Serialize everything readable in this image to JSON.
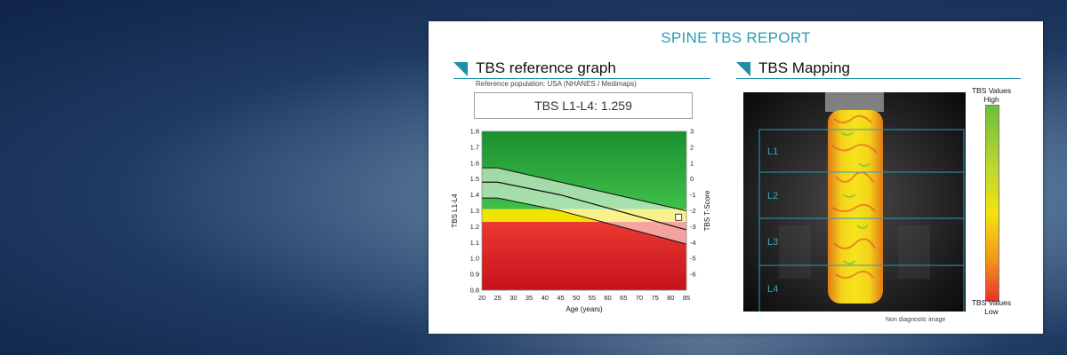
{
  "report": {
    "title": "SPINE TBS  REPORT",
    "left_section": "TBS reference graph",
    "right_section": "TBS Mapping",
    "reference_population": "Reference population: USA (NHANES / Medimaps)",
    "tbs_value_label": "TBS  L1-L4: 1.259",
    "non_diagnostic": "Non diagnostic image"
  },
  "mapping": {
    "levels": [
      "L1",
      "L2",
      "L3",
      "L4"
    ],
    "legend_high_top": "TBS Values",
    "legend_high_bottom": "High",
    "legend_low_top": "TBS Values",
    "legend_low_bottom": "Low"
  },
  "colors": {
    "accent": "#2a9db5",
    "zone_green": "#2fae3e",
    "zone_yellow": "#f0e400",
    "zone_red": "#e23a2e"
  },
  "chart_data": {
    "type": "area",
    "xlabel": "Age (years)",
    "ylabel": "TBS L1-L4",
    "y2label": "TBS T-Score",
    "xlim": [
      20,
      85
    ],
    "ylim": [
      0.8,
      1.8
    ],
    "y2lim": [
      -7,
      3
    ],
    "x_ticks": [
      20,
      25,
      30,
      35,
      40,
      45,
      50,
      55,
      60,
      65,
      70,
      75,
      80,
      85
    ],
    "y_ticks": [
      "0.8",
      "0.9",
      "1.0",
      "1.1",
      "1.2",
      "1.3",
      "1.4",
      "1.5",
      "1.6",
      "1.7",
      "1.8"
    ],
    "y2_ticks": [
      "3",
      "2",
      "1",
      "0",
      "-1",
      "-2",
      "-3",
      "-4",
      "-5",
      "-6"
    ],
    "zones": {
      "red_max": 1.23,
      "yellow_min": 1.23,
      "yellow_max": 1.31
    },
    "upper_band": {
      "x": [
        20,
        25,
        45,
        85
      ],
      "y": [
        1.57,
        1.57,
        1.48,
        1.3
      ]
    },
    "mean_line": {
      "x": [
        20,
        25,
        45,
        85
      ],
      "y": [
        1.48,
        1.48,
        1.4,
        1.18
      ]
    },
    "lower_band": {
      "x": [
        20,
        25,
        45,
        85
      ],
      "y": [
        1.38,
        1.38,
        1.3,
        1.09
      ]
    },
    "patient": {
      "age": 82.5,
      "tbs": 1.259
    }
  }
}
